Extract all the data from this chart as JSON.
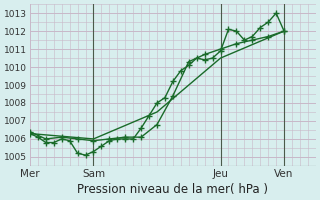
{
  "title": "Pression niveau de la mer( hPa )",
  "bg_color": "#d8eeee",
  "grid_color": "#c8b8c8",
  "line_color": "#1a6b2a",
  "ylim": [
    1004.5,
    1013.5
  ],
  "yticks": [
    1005,
    1006,
    1007,
    1008,
    1009,
    1010,
    1011,
    1012,
    1013
  ],
  "day_labels": [
    "Mer",
    "Sam",
    "Jeu",
    "Ven"
  ],
  "day_positions": [
    0,
    8,
    24,
    32
  ],
  "vlines": [
    8,
    24,
    32
  ],
  "series1_x": [
    0,
    1,
    2,
    3,
    4,
    5,
    6,
    7,
    8,
    9,
    10,
    11,
    12,
    13,
    14,
    15,
    16,
    17,
    18,
    19,
    20,
    21,
    22,
    23,
    24,
    25,
    26,
    27,
    28,
    29,
    30,
    31,
    32
  ],
  "series1_y": [
    1006.3,
    1006.1,
    1005.8,
    1005.8,
    1006.0,
    1005.9,
    1005.2,
    1005.1,
    1005.3,
    1005.6,
    1005.9,
    1006.0,
    1006.0,
    1006.0,
    1006.6,
    1007.3,
    1008.0,
    1008.3,
    1009.2,
    1009.8,
    1010.1,
    1010.5,
    1010.4,
    1010.5,
    1010.9,
    1012.1,
    1012.0,
    1011.5,
    1011.7,
    1012.2,
    1012.5,
    1013.0,
    1012.0
  ],
  "series2_x": [
    0,
    2,
    4,
    6,
    8,
    10,
    12,
    14,
    16,
    18,
    20,
    22,
    24,
    26,
    28,
    30,
    32
  ],
  "series2_y": [
    1006.4,
    1006.0,
    1006.1,
    1006.0,
    1005.9,
    1006.0,
    1006.1,
    1006.1,
    1006.8,
    1008.4,
    1010.3,
    1010.7,
    1011.0,
    1011.3,
    1011.5,
    1011.7,
    1012.0
  ],
  "series3_x": [
    0,
    8,
    16,
    24,
    32
  ],
  "series3_y": [
    1006.3,
    1006.0,
    1007.5,
    1010.5,
    1012.0
  ]
}
